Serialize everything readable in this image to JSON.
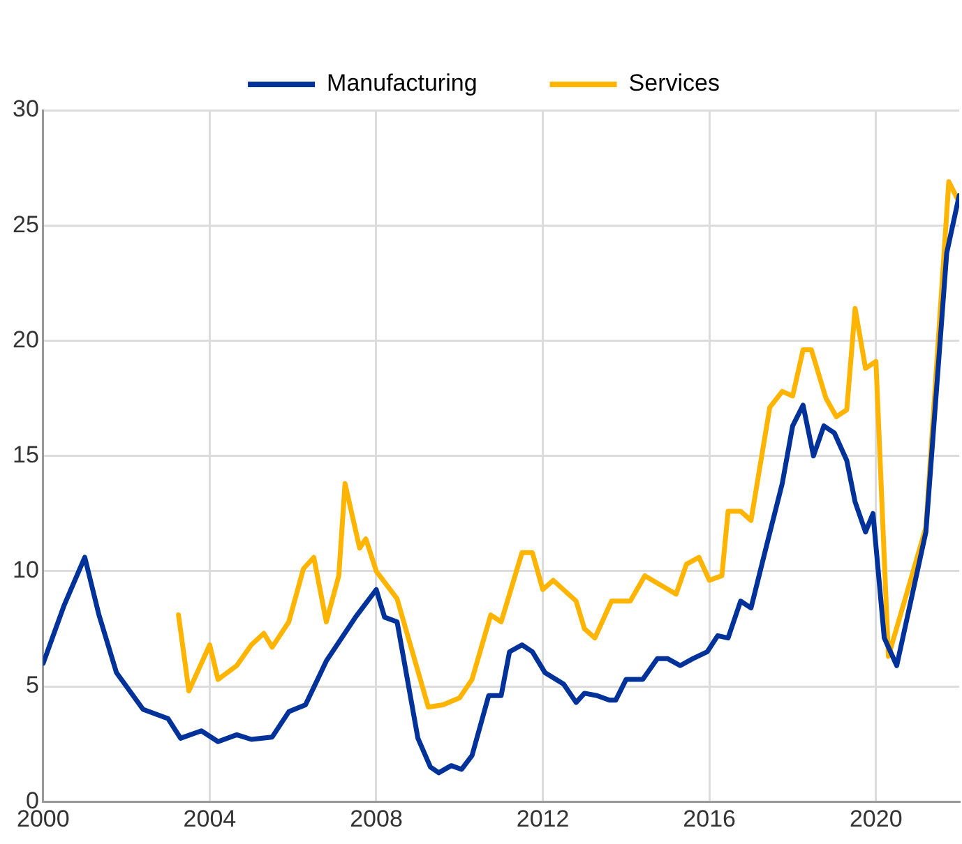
{
  "chart_data": {
    "type": "line",
    "xlim": [
      2000,
      2022
    ],
    "xticks": [
      2000,
      2004,
      2008,
      2012,
      2016,
      2020
    ],
    "ylim": [
      0,
      30
    ],
    "yticks": [
      0,
      5,
      10,
      15,
      20,
      25,
      30
    ],
    "grid": true,
    "legend": "top",
    "marker": "none",
    "line_style": "solid",
    "series": [
      {
        "name": "Manufacturing",
        "color": "#003299",
        "x": [
          2000.0,
          2000.5,
          2001.0,
          2001.34,
          2001.76,
          2002.4,
          2003.0,
          2003.3,
          2003.8,
          2004.2,
          2004.65,
          2005.0,
          2005.5,
          2005.9,
          2006.3,
          2006.8,
          2007.5,
          2008.0,
          2008.2,
          2008.5,
          2009.0,
          2009.3,
          2009.5,
          2009.8,
          2010.05,
          2010.3,
          2010.7,
          2011.0,
          2011.2,
          2011.5,
          2011.75,
          2012.05,
          2012.5,
          2012.8,
          2013.0,
          2013.3,
          2013.6,
          2013.75,
          2014.0,
          2014.4,
          2014.75,
          2015.0,
          2015.3,
          2015.6,
          2015.95,
          2016.2,
          2016.45,
          2016.75,
          2017.0,
          2017.4,
          2017.75,
          2018.0,
          2018.25,
          2018.5,
          2018.75,
          2019.0,
          2019.3,
          2019.5,
          2019.75,
          2019.93,
          2020.2,
          2020.5,
          2021.2,
          2021.7,
          2022.0
        ],
        "values": [
          6.0,
          8.5,
          10.6,
          8.1,
          5.6,
          4.0,
          3.6,
          2.75,
          3.07,
          2.6,
          2.9,
          2.7,
          2.8,
          3.9,
          4.2,
          6.1,
          8.0,
          9.2,
          8.0,
          7.8,
          2.75,
          1.5,
          1.25,
          1.56,
          1.4,
          2.0,
          4.6,
          4.6,
          6.5,
          6.8,
          6.5,
          5.6,
          5.1,
          4.3,
          4.7,
          4.6,
          4.4,
          4.4,
          5.3,
          5.3,
          6.2,
          6.2,
          5.9,
          6.2,
          6.5,
          7.2,
          7.1,
          8.7,
          8.4,
          11.3,
          13.8,
          16.3,
          17.2,
          15.0,
          16.3,
          16.0,
          14.8,
          13.0,
          11.7,
          12.5,
          7.1,
          5.9,
          11.7,
          23.8,
          26.3
        ]
      },
      {
        "name": "Services",
        "color": "#ffb400",
        "x": [
          2003.25,
          2003.5,
          2004.0,
          2004.2,
          2004.65,
          2005.0,
          2005.3,
          2005.5,
          2005.9,
          2006.25,
          2006.5,
          2006.8,
          2007.1,
          2007.25,
          2007.6,
          2007.75,
          2008.0,
          2008.5,
          2009.25,
          2009.6,
          2010.0,
          2010.3,
          2010.75,
          2011.0,
          2011.5,
          2011.75,
          2012.0,
          2012.25,
          2012.8,
          2013.0,
          2013.25,
          2013.65,
          2014.1,
          2014.45,
          2015.2,
          2015.45,
          2015.75,
          2016.0,
          2016.3,
          2016.45,
          2016.75,
          2017.0,
          2017.45,
          2017.75,
          2018.0,
          2018.25,
          2018.45,
          2018.8,
          2019.05,
          2019.3,
          2019.5,
          2019.75,
          2020.0,
          2020.3,
          2021.2,
          2021.75,
          2022.0
        ],
        "values": [
          8.1,
          4.8,
          6.8,
          5.3,
          5.9,
          6.8,
          7.3,
          6.7,
          7.8,
          10.1,
          10.6,
          7.8,
          9.8,
          13.8,
          11.0,
          11.4,
          10.0,
          8.8,
          4.1,
          4.2,
          4.5,
          5.3,
          8.1,
          7.8,
          10.8,
          10.8,
          9.2,
          9.6,
          8.7,
          7.5,
          7.1,
          8.7,
          8.7,
          9.8,
          9.0,
          10.3,
          10.6,
          9.6,
          9.8,
          12.6,
          12.6,
          12.2,
          17.1,
          17.8,
          17.6,
          19.6,
          19.6,
          17.5,
          16.7,
          17.0,
          21.4,
          18.8,
          19.1,
          6.3,
          11.9,
          26.9,
          26.0
        ]
      }
    ]
  }
}
